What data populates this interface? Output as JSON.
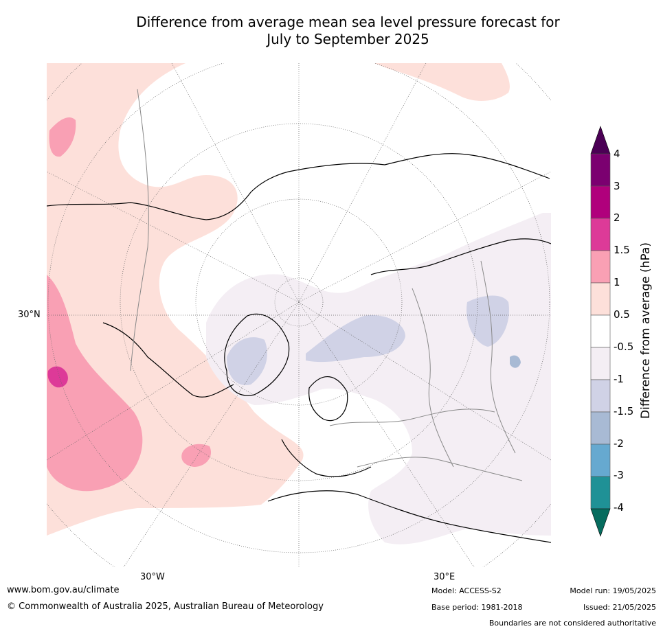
{
  "title_line1": "Difference from average mean sea level pressure forecast for",
  "title_line2": "July to September 2025",
  "map": {
    "lat_labels": [
      "30°N"
    ],
    "lon_labels": [
      "30°W",
      "30°E"
    ]
  },
  "colorbar": {
    "label": "Difference from average (hPa)",
    "ticks": [
      "4",
      "3",
      "2",
      "1.5",
      "1",
      "0.5",
      "-0.5",
      "-1",
      "-1.5",
      "-2",
      "-3",
      "-4"
    ],
    "colors": [
      "#4b0055",
      "#7b0070",
      "#b0007c",
      "#dd3a98",
      "#f9a0b4",
      "#fde0da",
      "#ffffff",
      "#f4eef4",
      "#d0d2e6",
      "#a8bad4",
      "#66a9d0",
      "#1f9196",
      "#066c5e"
    ]
  },
  "footer": {
    "url": "www.bom.gov.au/climate",
    "copyright": "© Commonwealth of Australia 2025, Australian Bureau of Meteorology",
    "model": "Model: ACCESS-S2",
    "base_period": "Base period: 1981-2018",
    "model_run": "Model run: 19/05/2025",
    "issued": "Issued: 21/05/2025",
    "disclaimer": "Boundaries are not considered authoritative"
  }
}
